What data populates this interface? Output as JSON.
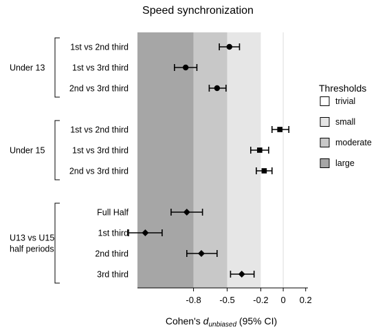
{
  "chart_data": {
    "type": "forest",
    "title": "Speed synchronization",
    "xlabel_prefix": "Cohen's ",
    "xlabel_italic": "d",
    "xlabel_subscript": "unbiased",
    "xlabel_suffix": " (95% CI)",
    "xlim": [
      -1.3,
      0.22
    ],
    "ticks": [
      {
        "value": -0.8,
        "label": "-0.8"
      },
      {
        "value": -0.5,
        "label": "-0.5"
      },
      {
        "value": -0.2,
        "label": "-0.2"
      },
      {
        "value": 0,
        "label": "0"
      },
      {
        "value": 0.2,
        "label": "0.2"
      }
    ],
    "threshold_bands": [
      {
        "name": "large",
        "from": -1.3,
        "to": -0.8,
        "color": "#a6a6a6"
      },
      {
        "name": "moderate",
        "from": -0.8,
        "to": -0.5,
        "color": "#c8c8c8"
      },
      {
        "name": "small",
        "from": -0.5,
        "to": -0.2,
        "color": "#e6e6e6"
      },
      {
        "name": "trivial",
        "from": -0.2,
        "to": 0.22,
        "color": "#ffffff"
      }
    ],
    "groups": [
      {
        "label_lines": [
          "Under 13"
        ],
        "rows": [
          0,
          1,
          2
        ]
      },
      {
        "label_lines": [
          "Under 15"
        ],
        "rows": [
          3,
          4,
          5
        ]
      },
      {
        "label_lines": [
          "U13 vs U15",
          "half periods"
        ],
        "rows": [
          6,
          7,
          8,
          9
        ]
      }
    ],
    "rows": [
      {
        "label": "1st vs 2nd third",
        "estimate": -0.48,
        "lower": -0.57,
        "upper": -0.39,
        "marker": "circle"
      },
      {
        "label": "1st vs 3rd third",
        "estimate": -0.87,
        "lower": -0.97,
        "upper": -0.77,
        "marker": "circle"
      },
      {
        "label": "2nd vs 3rd third",
        "estimate": -0.59,
        "lower": -0.66,
        "upper": -0.51,
        "marker": "circle"
      },
      {
        "label": "1st vs 2nd third",
        "estimate": -0.03,
        "lower": -0.1,
        "upper": 0.05,
        "marker": "square"
      },
      {
        "label": "1st vs 3rd third",
        "estimate": -0.21,
        "lower": -0.29,
        "upper": -0.13,
        "marker": "square"
      },
      {
        "label": "2nd vs 3rd third",
        "estimate": -0.17,
        "lower": -0.24,
        "upper": -0.1,
        "marker": "square"
      },
      {
        "label": "Full Half",
        "estimate": -0.86,
        "lower": -1.0,
        "upper": -0.72,
        "marker": "diamond"
      },
      {
        "label": "1st third",
        "estimate": -1.23,
        "lower": -1.38,
        "upper": -1.08,
        "marker": "diamond"
      },
      {
        "label": "2nd third",
        "estimate": -0.73,
        "lower": -0.86,
        "upper": -0.59,
        "marker": "diamond"
      },
      {
        "label": "3rd third",
        "estimate": -0.37,
        "lower": -0.47,
        "upper": -0.26,
        "marker": "diamond"
      }
    ],
    "legend": {
      "title": "Thresholds",
      "position": "right",
      "items": [
        {
          "label": "trivial",
          "color": "#ffffff"
        },
        {
          "label": "small",
          "color": "#e6e6e6"
        },
        {
          "label": "moderate",
          "color": "#c8c8c8"
        },
        {
          "label": "large",
          "color": "#a6a6a6"
        }
      ]
    }
  }
}
